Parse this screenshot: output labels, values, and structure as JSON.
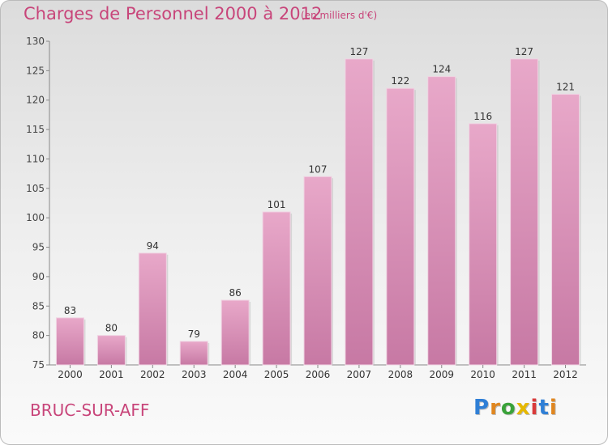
{
  "chart_data": {
    "type": "bar",
    "title": "Charges de Personnel 2000 à 2012",
    "subtitle": "(en milliers d'€)",
    "categories": [
      "2000",
      "2001",
      "2002",
      "2003",
      "2004",
      "2005",
      "2006",
      "2007",
      "2008",
      "2009",
      "2010",
      "2011",
      "2012"
    ],
    "values": [
      83,
      80,
      94,
      79,
      86,
      101,
      107,
      127,
      122,
      124,
      116,
      127,
      121
    ],
    "ylim": [
      75,
      130
    ],
    "yticks": [
      75,
      80,
      85,
      90,
      95,
      100,
      105,
      110,
      115,
      120,
      125,
      130
    ],
    "grid": false,
    "bar_color": "#c779a4",
    "bar_color_light": "#e8a8c9",
    "text_color": "#c8457a"
  },
  "location": "BRUC-SUR-AFF",
  "logo": {
    "letters": [
      "P",
      "r",
      "o",
      "x",
      "i",
      "t",
      "i"
    ],
    "colors": [
      "#2f7fd6",
      "#e0861f",
      "#3aa23a",
      "#e6b800",
      "#d93a3a",
      "#2f7fd6",
      "#e0861f"
    ]
  }
}
